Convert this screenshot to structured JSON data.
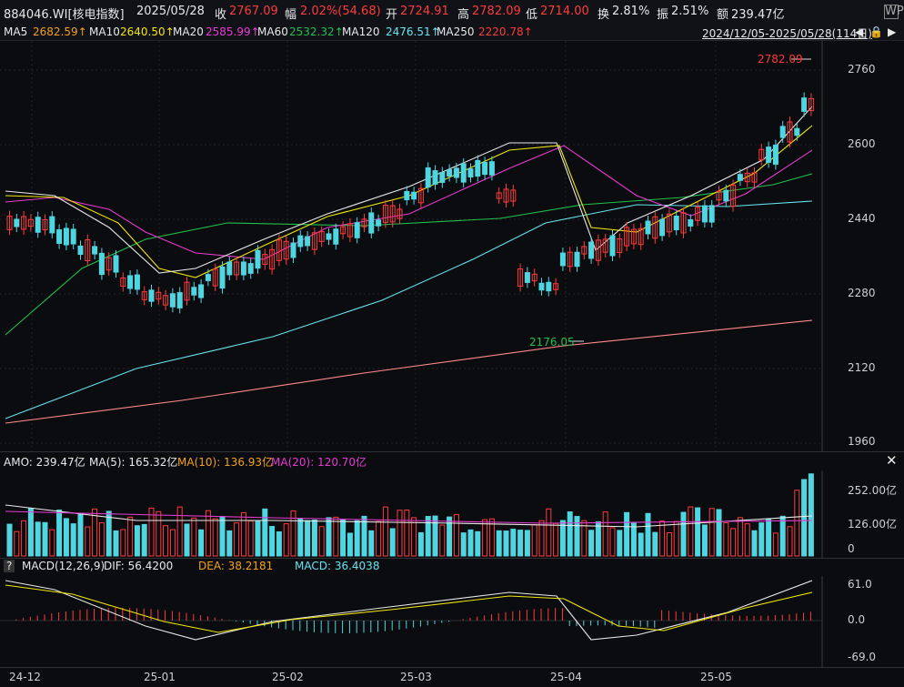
{
  "header": {
    "code": "884046.WI[核电指数]",
    "date": "2025/05/28",
    "close_label": "收",
    "close": "2767.09",
    "chg_label": "幅",
    "chg": "2.02%(54.68)",
    "open_label": "开",
    "open": "2724.91",
    "high_label": "高",
    "high": "2782.09",
    "low_label": "低",
    "low": "2714.00",
    "turn_label": "换",
    "turn": "2.81%",
    "amp_label": "振",
    "amp": "2.51%",
    "amt_label": "额",
    "amt": "239.47亿",
    "badge": "WP"
  },
  "ma_bar": {
    "ma5": "MA5",
    "ma5_v": "2682.59↑",
    "ma10": "MA10",
    "ma10_v": "2640.50↑",
    "ma20": "MA20",
    "ma20_v": "2585.99↑",
    "ma60": "MA60",
    "ma60_v": "2532.32↑",
    "ma120": "MA120",
    "ma120_v": "2476.51↑",
    "ma250": "MA250",
    "ma250_v": "2220.78↑",
    "range": "2024/12/05-2025/05/28(114日)"
  },
  "price_axis": [
    "2760",
    "2600",
    "2440",
    "2280",
    "2120",
    "1960"
  ],
  "annotations": {
    "high": "2782.09",
    "low": "2176.05"
  },
  "amo": {
    "label": "AMO: 239.47亿",
    "ma5": "MA(5): 165.32亿",
    "ma10": "MA(10): 136.93亿",
    "ma20": "MA(20): 120.70亿",
    "axis": [
      "252.00亿",
      "126.00亿",
      "0"
    ]
  },
  "macd": {
    "q": "?",
    "label": "MACD(12,26,9)",
    "dif": "DIF: 56.4200",
    "dea": "DEA: 38.2181",
    "macd": "MACD: 36.4038",
    "axis": [
      "61.0",
      "0.0",
      "-69.0"
    ]
  },
  "x_axis": [
    "24-12",
    "25-01",
    "25-02",
    "25-03",
    "25-04",
    "25-05"
  ],
  "colors": {
    "up": "#ff3b3b",
    "down": "#4fd6e0",
    "ma5": "#e8e8e8",
    "ma10": "#f2e70a",
    "ma20": "#e83ad0",
    "ma60": "#21c04a",
    "ma120": "#67e3ef",
    "ma250": "#ff8a8a"
  }
}
